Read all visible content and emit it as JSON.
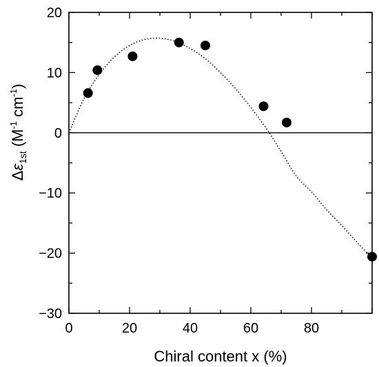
{
  "chart_data": {
    "type": "scatter",
    "title": "",
    "xlabel": "Chiral content x (%)",
    "ylabel": {
      "prefix": "Δ",
      "symbol": "ε",
      "subscript": "1st",
      "unit_open": " (M",
      "unit_exp1": "-1",
      "unit_mid": " cm",
      "unit_exp2": "-1",
      "unit_close": ")"
    },
    "xlim": [
      0,
      100
    ],
    "ylim": [
      -30,
      20
    ],
    "x_ticks": [
      0,
      20,
      40,
      60,
      80
    ],
    "x_tick_labels": [
      "0",
      "20",
      "40",
      "60",
      "80"
    ],
    "y_ticks": [
      20,
      10,
      0,
      -10,
      -20,
      -30
    ],
    "y_tick_labels": [
      "20",
      "10",
      "0",
      "−10",
      "−20",
      "−30"
    ],
    "grid": false,
    "series": [
      {
        "type": "scatter",
        "x": [
          6.3,
          9.4,
          21.0,
          36.3,
          45.0,
          64.2,
          71.8,
          100.0
        ],
        "y": [
          6.6,
          10.4,
          12.7,
          15.0,
          14.5,
          4.4,
          1.7,
          -20.6
        ]
      },
      {
        "type": "line",
        "style": "dotted",
        "x": [
          0,
          5,
          10,
          15,
          20,
          25,
          30,
          35,
          40,
          45,
          50,
          55,
          60,
          65,
          70,
          75,
          80,
          85,
          90,
          95,
          100
        ],
        "y": [
          0,
          5.7,
          9.7,
          12.6,
          14.5,
          15.5,
          15.7,
          15.2,
          14.0,
          12.3,
          10.0,
          7.3,
          4.2,
          0.8,
          -3.1,
          -7.2,
          -9.8,
          -12.8,
          -15.4,
          -18.2,
          -20.8
        ]
      }
    ],
    "reference_lines": [
      {
        "axis": "y",
        "value": 0
      }
    ]
  }
}
